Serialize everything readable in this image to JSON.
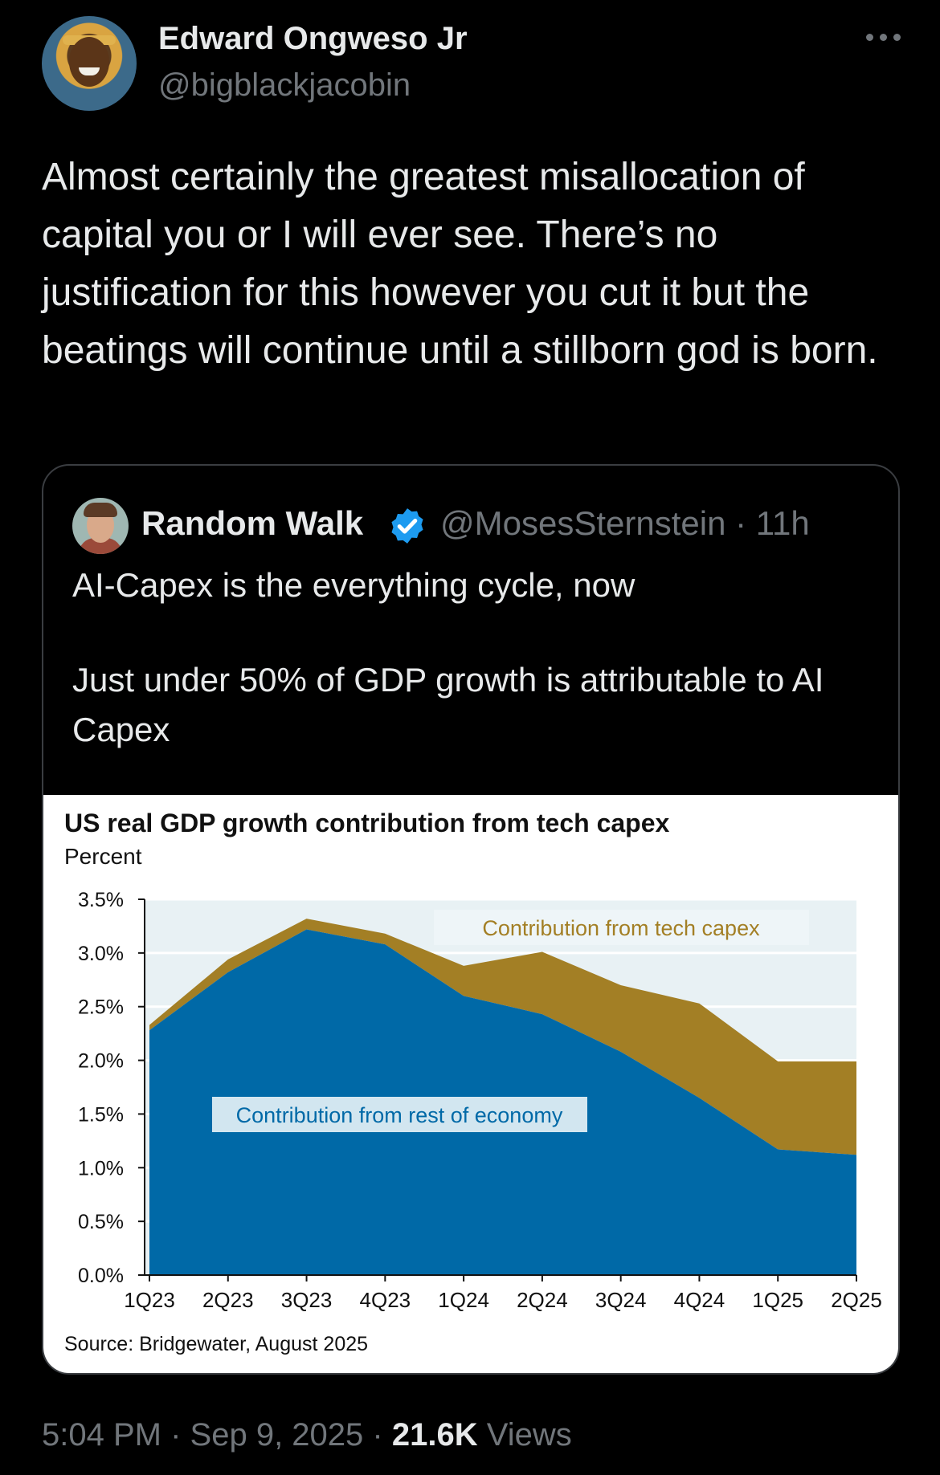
{
  "tweet": {
    "author": {
      "name": "Edward Ongweso Jr",
      "handle": "@bigblackjacobin"
    },
    "more_icon": "more-horizontal-icon",
    "text": "Almost certainly the greatest misallocation of capital you or I will ever see. There’s no justification for this however you cut it but the beatings will continue until a stillborn god is born.",
    "time": "5:04 PM",
    "date": "Sep 9, 2025",
    "views_count": "21.6K",
    "views_label": "Views",
    "separator": "·"
  },
  "quote": {
    "author": {
      "name": "Random Walk",
      "handle": "@MosesSternstein",
      "age": "11h",
      "verified_icon": "verified-badge-icon"
    },
    "text_line1": "AI-Capex is the everything cycle, now",
    "text_line2": "Just under 50% of GDP growth is attributable to AI Capex"
  },
  "chart_data": {
    "type": "area",
    "stacked": true,
    "title": "US real GDP growth contribution from tech capex",
    "subtitle": "Percent",
    "source": "Source: Bridgewater, August 2025",
    "categories": [
      "1Q23",
      "2Q23",
      "3Q23",
      "4Q23",
      "1Q24",
      "2Q24",
      "3Q24",
      "4Q24",
      "1Q25",
      "2Q25"
    ],
    "y_ticks": [
      "0.0%",
      "0.5%",
      "1.0%",
      "1.5%",
      "2.0%",
      "2.5%",
      "3.0%",
      "3.5%"
    ],
    "ylim": [
      0,
      3.5
    ],
    "grid": true,
    "series": [
      {
        "name": "Contribution from rest of economy",
        "color": "#0069a7",
        "label_bg": "#d2e6f0",
        "label_color": "#0069a7",
        "values": [
          2.28,
          2.82,
          3.22,
          3.08,
          2.6,
          2.43,
          2.08,
          1.65,
          1.17,
          1.12
        ]
      },
      {
        "name": "Contribution from tech capex",
        "color": "#a37f25",
        "label_bg": "#eef5f8",
        "label_color": "#a37f25",
        "values": [
          0.05,
          0.12,
          0.1,
          0.1,
          0.28,
          0.58,
          0.62,
          0.88,
          0.82,
          0.87
        ]
      }
    ],
    "plot_bg": "#e8f1f4"
  }
}
